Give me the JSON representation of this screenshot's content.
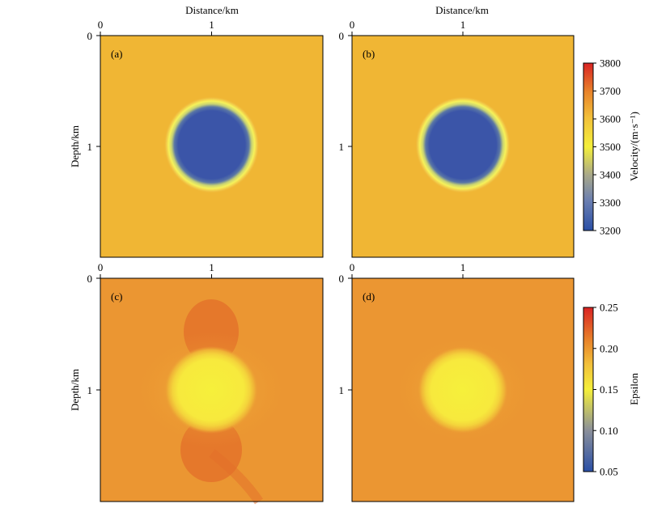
{
  "figure": {
    "top_xlabel": "Distance/km",
    "ylabel": "Depth/km",
    "x_ticks": [
      "0",
      "1"
    ],
    "y_ticks": [
      "0",
      "1"
    ]
  },
  "chart_data": [
    {
      "type": "heatmap",
      "panel": "(a)",
      "xlabel": "Distance/km",
      "ylabel": "Depth/km",
      "xlim": [
        0,
        2
      ],
      "ylim": [
        0,
        2
      ],
      "background_value": 3600,
      "anomaly": {
        "center_km": [
          1.0,
          1.0
        ],
        "radius_km": 0.33,
        "value": 3200
      },
      "colorbar": "velocity"
    },
    {
      "type": "heatmap",
      "panel": "(b)",
      "xlabel": "Distance/km",
      "ylabel": "",
      "xlim": [
        0,
        2
      ],
      "ylim": [
        0,
        2
      ],
      "background_value": 3600,
      "anomaly": {
        "center_km": [
          1.0,
          1.0
        ],
        "radius_km": 0.33,
        "value": 3200
      },
      "colorbar": "velocity"
    },
    {
      "type": "heatmap",
      "panel": "(c)",
      "xlabel": "",
      "ylabel": "Depth/km",
      "xlim": [
        0,
        2
      ],
      "ylim": [
        0,
        2
      ],
      "background_value": 0.2,
      "anomaly": {
        "center_km": [
          1.0,
          1.0
        ],
        "radius_km": 0.35,
        "value": 0.15
      },
      "colorbar": "epsilon"
    },
    {
      "type": "heatmap",
      "panel": "(d)",
      "xlabel": "",
      "ylabel": "",
      "xlim": [
        0,
        2
      ],
      "ylim": [
        0,
        2
      ],
      "background_value": 0.2,
      "anomaly": {
        "center_km": [
          1.0,
          1.0
        ],
        "radius_km": 0.35,
        "value": 0.15
      },
      "colorbar": "epsilon"
    }
  ],
  "colorbars": {
    "velocity": {
      "label": "Velocity/(m·s⁻¹)",
      "ticks": [
        "3800",
        "3700",
        "3600",
        "3500",
        "3400",
        "3300",
        "3200"
      ],
      "range": [
        3200,
        3800
      ],
      "colors": [
        "#2a4fa6",
        "#6b7fb0",
        "#a8a88a",
        "#f4ef3a",
        "#f2c13a",
        "#e8832a",
        "#d92323"
      ]
    },
    "epsilon": {
      "label": "Epsilon",
      "ticks": [
        "0.25",
        "0.20",
        "0.15",
        "0.10",
        "0.05"
      ],
      "range": [
        0.05,
        0.25
      ],
      "colors": [
        "#2a4fa6",
        "#8a8f9a",
        "#f4ef3a",
        "#f2c13a",
        "#e8832a",
        "#d92323"
      ]
    }
  }
}
